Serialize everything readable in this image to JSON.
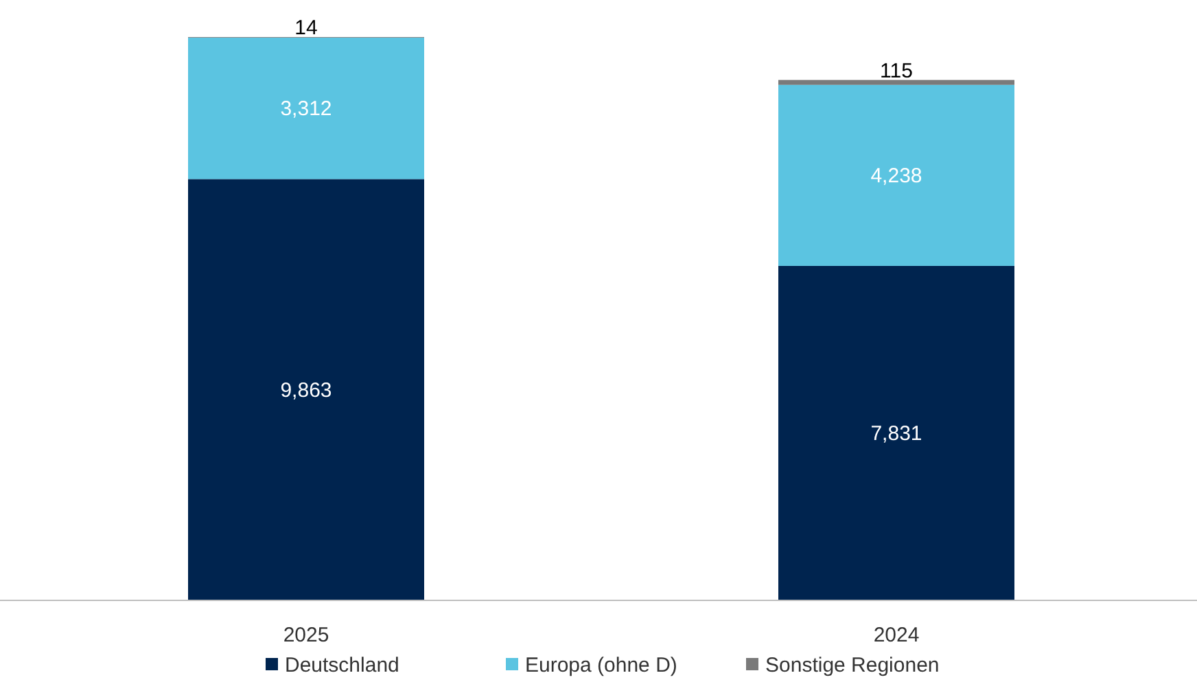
{
  "chart_data": {
    "type": "bar",
    "stacked": true,
    "categories": [
      "2025",
      "2024"
    ],
    "series": [
      {
        "name": "Deutschland",
        "color": "#00244f",
        "values": [
          9863,
          7831
        ],
        "value_labels": [
          "9,863",
          "7,831"
        ]
      },
      {
        "name": "Europa (ohne D)",
        "color": "#5bc4e1",
        "values": [
          3312,
          4238
        ],
        "value_labels": [
          "3,312",
          "4,238"
        ]
      },
      {
        "name": "Sonstige Regionen",
        "color": "#7a7a7a",
        "values": [
          14,
          115
        ],
        "value_labels": [
          "14",
          "115"
        ]
      }
    ],
    "legend": "bottom",
    "grid": false
  }
}
